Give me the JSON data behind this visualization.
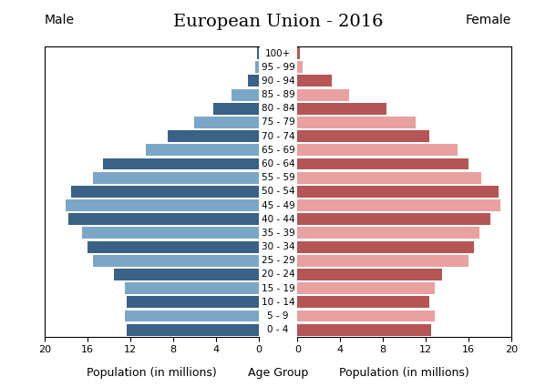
{
  "title": "European Union - 2016",
  "left_label": "Male",
  "right_label": "Female",
  "xlabel_left": "Population (in millions)",
  "xlabel_center": "Age Group",
  "xlabel_right": "Population (in millions)",
  "age_groups": [
    "0 - 4",
    "5 - 9",
    "10 - 14",
    "15 - 19",
    "20 - 24",
    "25 - 29",
    "30 - 34",
    "35 - 39",
    "40 - 44",
    "45 - 49",
    "50 - 54",
    "55 - 59",
    "60 - 64",
    "65 - 69",
    "70 - 74",
    "75 - 79",
    "80 - 84",
    "85 - 89",
    "90 - 94",
    "95 - 99",
    "100+"
  ],
  "male_values": [
    12.3,
    12.5,
    12.3,
    12.5,
    13.5,
    15.5,
    16.0,
    16.5,
    17.8,
    18.0,
    17.5,
    15.5,
    14.5,
    10.5,
    8.5,
    6.0,
    4.2,
    2.5,
    1.0,
    0.3,
    0.1
  ],
  "female_values": [
    12.5,
    12.8,
    12.3,
    12.8,
    13.5,
    16.0,
    16.5,
    17.0,
    18.0,
    19.0,
    18.8,
    17.2,
    16.0,
    15.0,
    12.3,
    11.0,
    8.3,
    4.8,
    3.2,
    0.5,
    0.2
  ],
  "male_dark_color": "#3a6186",
  "male_light_color": "#7ba7c7",
  "female_dark_color": "#b55555",
  "female_light_color": "#e8a0a0",
  "background_color": "#ffffff",
  "xlim": 20,
  "bar_height": 0.85,
  "title_fontsize": 14,
  "label_fontsize": 10,
  "tick_fontsize": 8,
  "ytick_fontsize": 7.5,
  "xlabel_fontsize": 9
}
